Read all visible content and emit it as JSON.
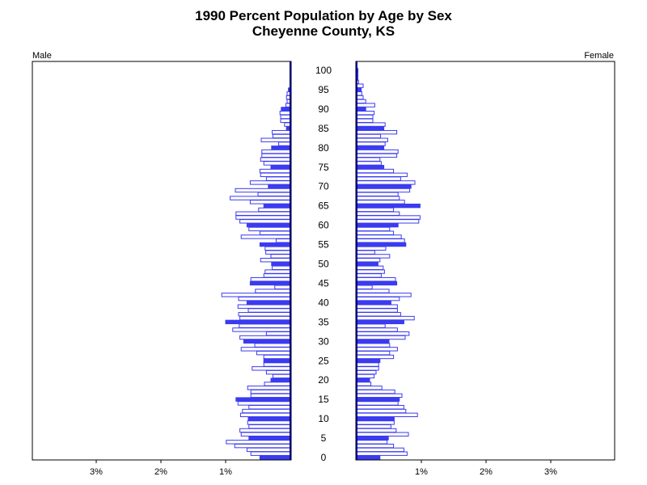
{
  "chart_data": {
    "type": "bar",
    "orientation": "horizontal",
    "title": "1990 Percent Population by Age by Sex",
    "subtitle": "Cheyenne County, KS",
    "panels": {
      "left": "Male",
      "right": "Female"
    },
    "x_tick_labels": [
      "3%",
      "2%",
      "1%"
    ],
    "x_ticks": [
      3,
      2,
      1
    ],
    "xlim": [
      0,
      4
    ],
    "age_ticks": [
      100,
      95,
      90,
      85,
      80,
      75,
      70,
      65,
      60,
      55,
      50,
      45,
      40,
      35,
      30,
      25,
      20,
      15,
      10,
      5,
      0
    ],
    "ylim": [
      0,
      100
    ],
    "highlight": "every fifth age (0, 5, 10, ...) drawn as solid bars",
    "colors": {
      "bar": "#3b3bf0",
      "center_axis": "#000080"
    },
    "series": [
      {
        "name": "Male",
        "x": [
          0,
          1,
          2,
          3,
          4,
          5,
          6,
          7,
          8,
          9,
          10,
          11,
          12,
          13,
          14,
          15,
          16,
          17,
          18,
          19,
          20,
          21,
          22,
          23,
          24,
          25,
          26,
          27,
          28,
          29,
          30,
          31,
          32,
          33,
          34,
          35,
          36,
          37,
          38,
          39,
          40,
          41,
          42,
          43,
          44,
          45,
          46,
          47,
          48,
          49,
          50,
          51,
          52,
          53,
          54,
          55,
          56,
          57,
          58,
          59,
          60,
          61,
          62,
          63,
          64,
          65,
          66,
          67,
          68,
          69,
          70,
          71,
          72,
          73,
          74,
          75,
          76,
          77,
          78,
          79,
          80,
          81,
          82,
          83,
          84,
          85,
          86,
          87,
          88,
          89,
          90,
          91,
          92,
          93,
          94,
          95,
          96,
          97,
          98,
          99,
          100
        ],
        "values": [
          0.47,
          0.61,
          0.67,
          0.86,
          0.99,
          0.64,
          0.76,
          0.78,
          0.64,
          0.66,
          0.65,
          0.77,
          0.74,
          0.64,
          0.81,
          0.84,
          0.61,
          0.61,
          0.66,
          0.4,
          0.3,
          0.27,
          0.37,
          0.59,
          0.41,
          0.41,
          0.41,
          0.52,
          0.76,
          0.55,
          0.72,
          0.78,
          0.37,
          0.89,
          0.79,
          1.0,
          0.78,
          0.8,
          0.65,
          0.81,
          0.67,
          0.8,
          1.06,
          0.54,
          0.24,
          0.62,
          0.61,
          0.41,
          0.39,
          0.28,
          0.29,
          0.46,
          0.3,
          0.38,
          0.39,
          0.47,
          0.22,
          0.76,
          0.47,
          0.64,
          0.67,
          0.78,
          0.84,
          0.84,
          0.49,
          0.41,
          0.62,
          0.93,
          0.5,
          0.85,
          0.34,
          0.62,
          0.37,
          0.46,
          0.47,
          0.3,
          0.41,
          0.46,
          0.44,
          0.44,
          0.29,
          0.18,
          0.45,
          0.27,
          0.28,
          0.06,
          0.09,
          0.15,
          0.15,
          0.16,
          0.14,
          0.07,
          0.05,
          0.06,
          0.05,
          0.03,
          0.0,
          0.0,
          0.0,
          0.0,
          0.0
        ]
      },
      {
        "name": "Female",
        "x": [
          0,
          1,
          2,
          3,
          4,
          5,
          6,
          7,
          8,
          9,
          10,
          11,
          12,
          13,
          14,
          15,
          16,
          17,
          18,
          19,
          20,
          21,
          22,
          23,
          24,
          25,
          26,
          27,
          28,
          29,
          30,
          31,
          32,
          33,
          34,
          35,
          36,
          37,
          38,
          39,
          40,
          41,
          42,
          43,
          44,
          45,
          46,
          47,
          48,
          49,
          50,
          51,
          52,
          53,
          54,
          55,
          56,
          57,
          58,
          59,
          60,
          61,
          62,
          63,
          64,
          65,
          66,
          67,
          68,
          69,
          70,
          71,
          72,
          73,
          74,
          75,
          76,
          77,
          78,
          79,
          80,
          81,
          82,
          83,
          84,
          85,
          86,
          87,
          88,
          89,
          90,
          91,
          92,
          93,
          94,
          95,
          96,
          97,
          98,
          99,
          100
        ],
        "values": [
          0.36,
          0.78,
          0.73,
          0.57,
          0.47,
          0.49,
          0.8,
          0.61,
          0.53,
          0.58,
          0.58,
          0.94,
          0.76,
          0.73,
          0.64,
          0.66,
          0.7,
          0.59,
          0.39,
          0.22,
          0.2,
          0.27,
          0.3,
          0.34,
          0.34,
          0.36,
          0.57,
          0.51,
          0.63,
          0.51,
          0.5,
          0.75,
          0.81,
          0.63,
          0.44,
          0.73,
          0.89,
          0.68,
          0.63,
          0.63,
          0.53,
          0.66,
          0.84,
          0.5,
          0.24,
          0.62,
          0.6,
          0.38,
          0.43,
          0.41,
          0.33,
          0.36,
          0.51,
          0.28,
          0.45,
          0.76,
          0.74,
          0.69,
          0.57,
          0.51,
          0.64,
          0.96,
          0.98,
          0.66,
          0.57,
          0.98,
          0.74,
          0.66,
          0.64,
          0.82,
          0.84,
          0.9,
          0.68,
          0.78,
          0.57,
          0.42,
          0.38,
          0.36,
          0.62,
          0.64,
          0.42,
          0.44,
          0.48,
          0.37,
          0.62,
          0.42,
          0.44,
          0.25,
          0.25,
          0.27,
          0.14,
          0.28,
          0.14,
          0.1,
          0.08,
          0.07,
          0.1,
          0.03,
          0.02,
          0.02,
          0.02
        ]
      }
    ]
  }
}
